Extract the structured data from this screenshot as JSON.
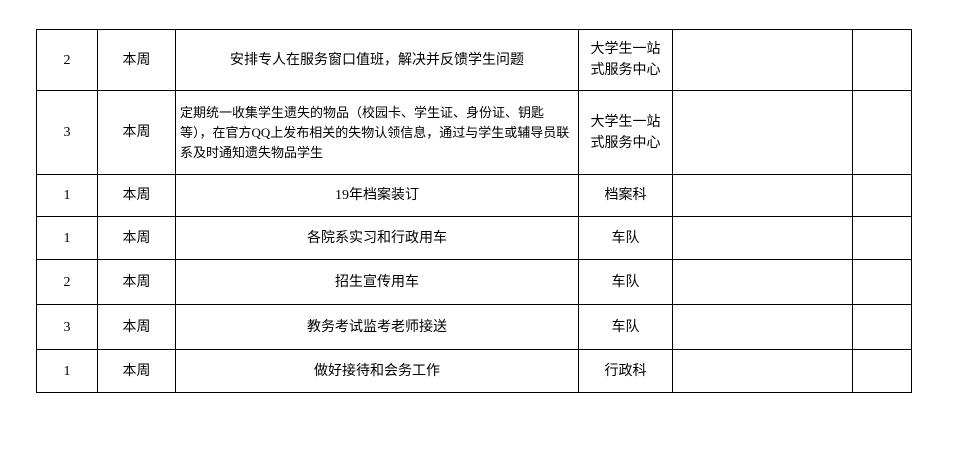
{
  "rows": [
    {
      "no": "2",
      "period": "本周",
      "task": "安排专人在服务窗口值班，解决并反馈学生问题",
      "dept": "大学生一站式服务中心",
      "c5": "",
      "c6": ""
    },
    {
      "no": "3",
      "period": "本周",
      "task": "定期统一收集学生遗失的物品（校园卡、学生证、身份证、钥匙等），在官方QQ上发布相关的失物认领信息，通过与学生或辅导员联系及时通知遗失物品学生",
      "dept": "大学生一站式服务中心",
      "c5": "",
      "c6": ""
    },
    {
      "no": "1",
      "period": "本周",
      "task": "19年档案装订",
      "dept": "档案科",
      "c5": "",
      "c6": ""
    },
    {
      "no": "1",
      "period": "本周",
      "task": "各院系实习和行政用车",
      "dept": "车队",
      "c5": "",
      "c6": ""
    },
    {
      "no": "2",
      "period": "本周",
      "task": "招生宣传用车",
      "dept": "车队",
      "c5": "",
      "c6": ""
    },
    {
      "no": "3",
      "period": "本周",
      "task": "教务考试监考老师接送",
      "dept": "车队",
      "c5": "",
      "c6": ""
    },
    {
      "no": "1",
      "period": "本周",
      "task": "做好接待和会务工作",
      "dept": "行政科",
      "c5": "",
      "c6": ""
    }
  ]
}
